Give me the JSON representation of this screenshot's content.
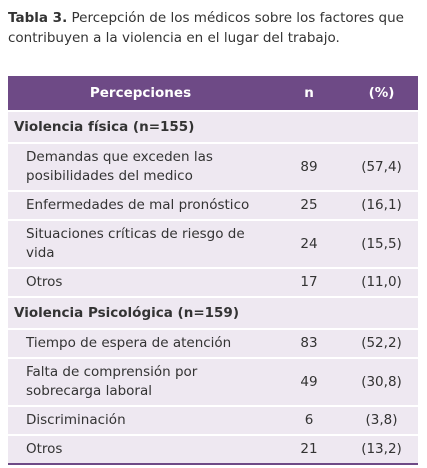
{
  "caption": {
    "label": "Tabla 3.",
    "text": "Percepción de los médicos sobre los factores que contribuyen a la violencia en el lugar del trabajo."
  },
  "table": {
    "header": [
      "Percepciones",
      "n",
      "(%)"
    ],
    "sections": [
      {
        "title": "Violencia física (n=155)",
        "rows": [
          [
            "Demandas que exceden las posibilidades del medico",
            89,
            "(57,4)"
          ],
          [
            "Enfermedades de mal pronóstico",
            25,
            "(16,1)"
          ],
          [
            "Situaciones críticas de riesgo de vida",
            24,
            "(15,5)"
          ],
          [
            "Otros",
            17,
            "(11,0)"
          ]
        ]
      },
      {
        "title": "Violencia Psicológica (n=159)",
        "rows": [
          [
            "Tiempo de espera de atención",
            83,
            "(52,2)"
          ],
          [
            "Falta de comprensión por sobrecarga laboral",
            49,
            "(30,8)"
          ],
          [
            "Discriminación",
            6,
            "(3,8)"
          ],
          [
            "Otros",
            21,
            "(13,2)"
          ]
        ]
      }
    ]
  }
}
